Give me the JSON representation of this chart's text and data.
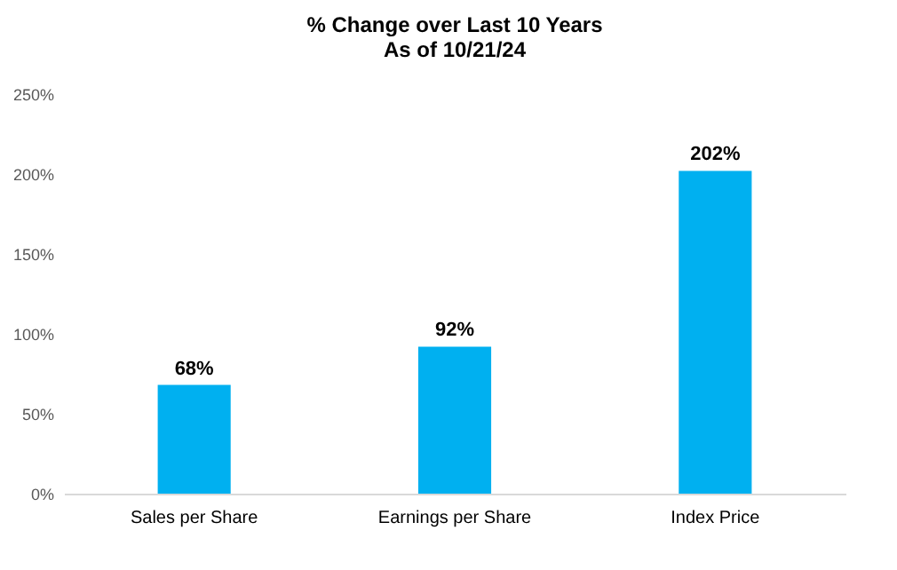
{
  "chart_data": {
    "type": "bar",
    "title": "% Change over Last 10 Years",
    "subtitle": "As of 10/21/24",
    "categories": [
      "Sales per Share",
      "Earnings per Share",
      "Index Price"
    ],
    "values": [
      68,
      92,
      202
    ],
    "color": "#00b0f0",
    "value_labels": [
      "68%",
      "92%",
      "202%"
    ],
    "ylim": [
      0,
      250
    ],
    "yticks": [
      {
        "value": 0,
        "label": "0%"
      },
      {
        "value": 50,
        "label": "50%"
      },
      {
        "value": 100,
        "label": "100%"
      },
      {
        "value": 150,
        "label": "150%"
      },
      {
        "value": 200,
        "label": "200%"
      },
      {
        "value": 250,
        "label": "250%"
      }
    ],
    "grid": false
  }
}
